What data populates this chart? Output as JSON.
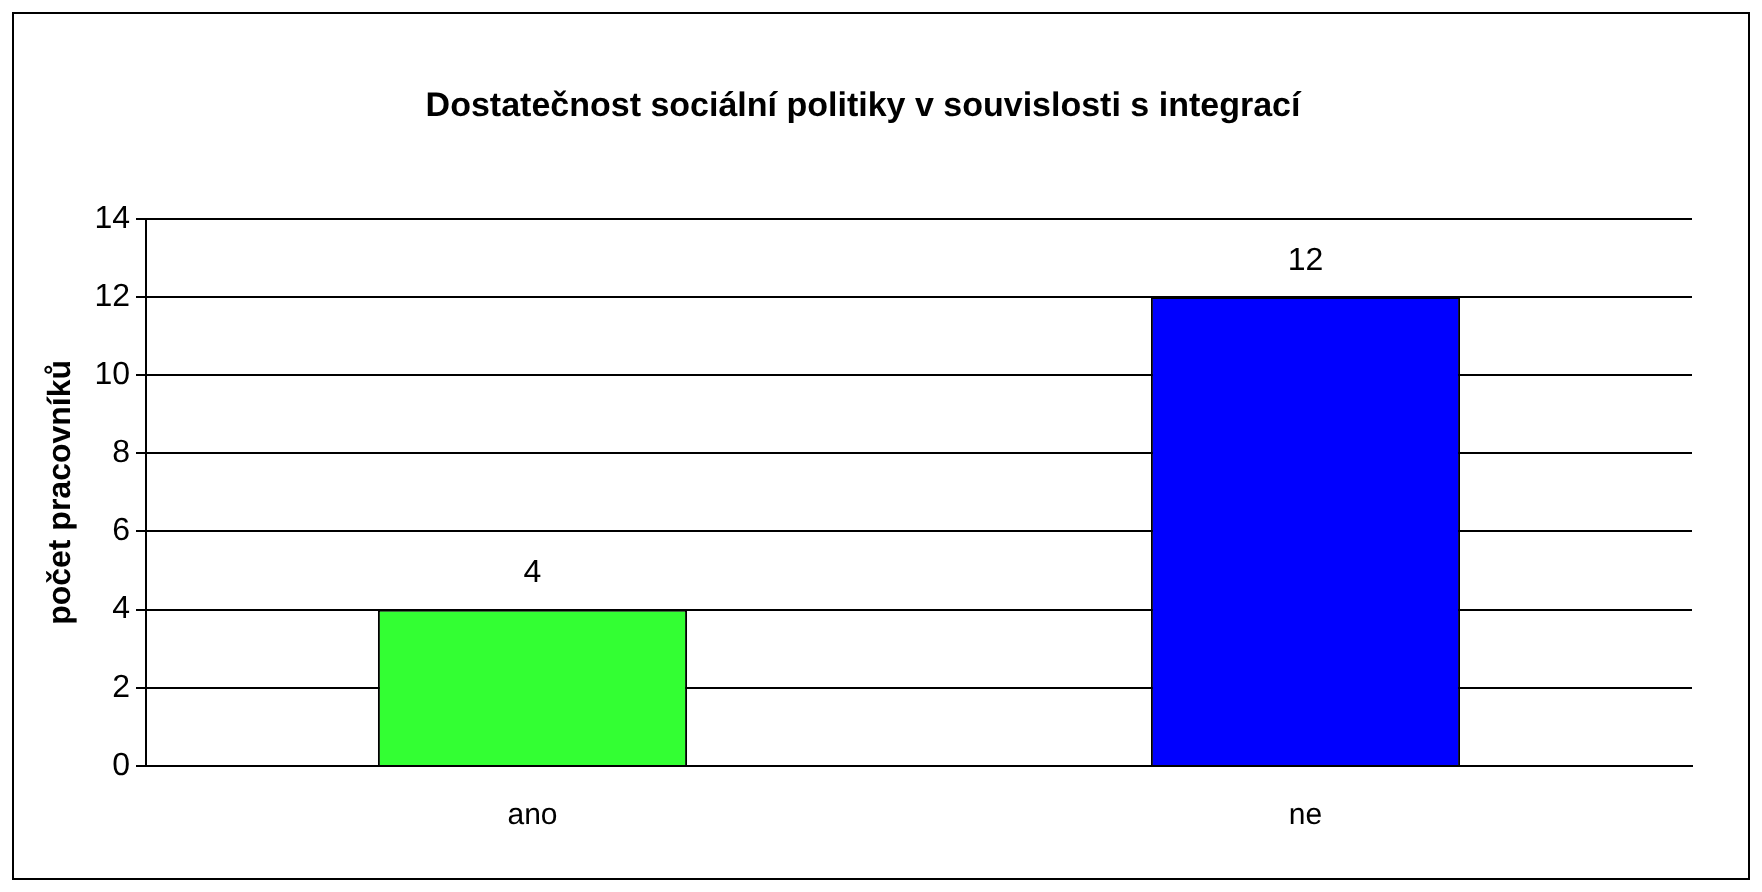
{
  "chart_data": {
    "type": "bar",
    "title": "Dostatečnost sociální politiky v souvislosti s integrací",
    "ylabel": "počet pracovníků",
    "categories": [
      "ano",
      "ne"
    ],
    "values": [
      4,
      12
    ],
    "colors": [
      "#33ff33",
      "#0000ff"
    ],
    "ylim": [
      0,
      14
    ],
    "yticks": [
      0,
      2,
      4,
      6,
      8,
      10,
      12,
      14
    ],
    "grid": "y",
    "legend": false,
    "data_labels": true
  }
}
